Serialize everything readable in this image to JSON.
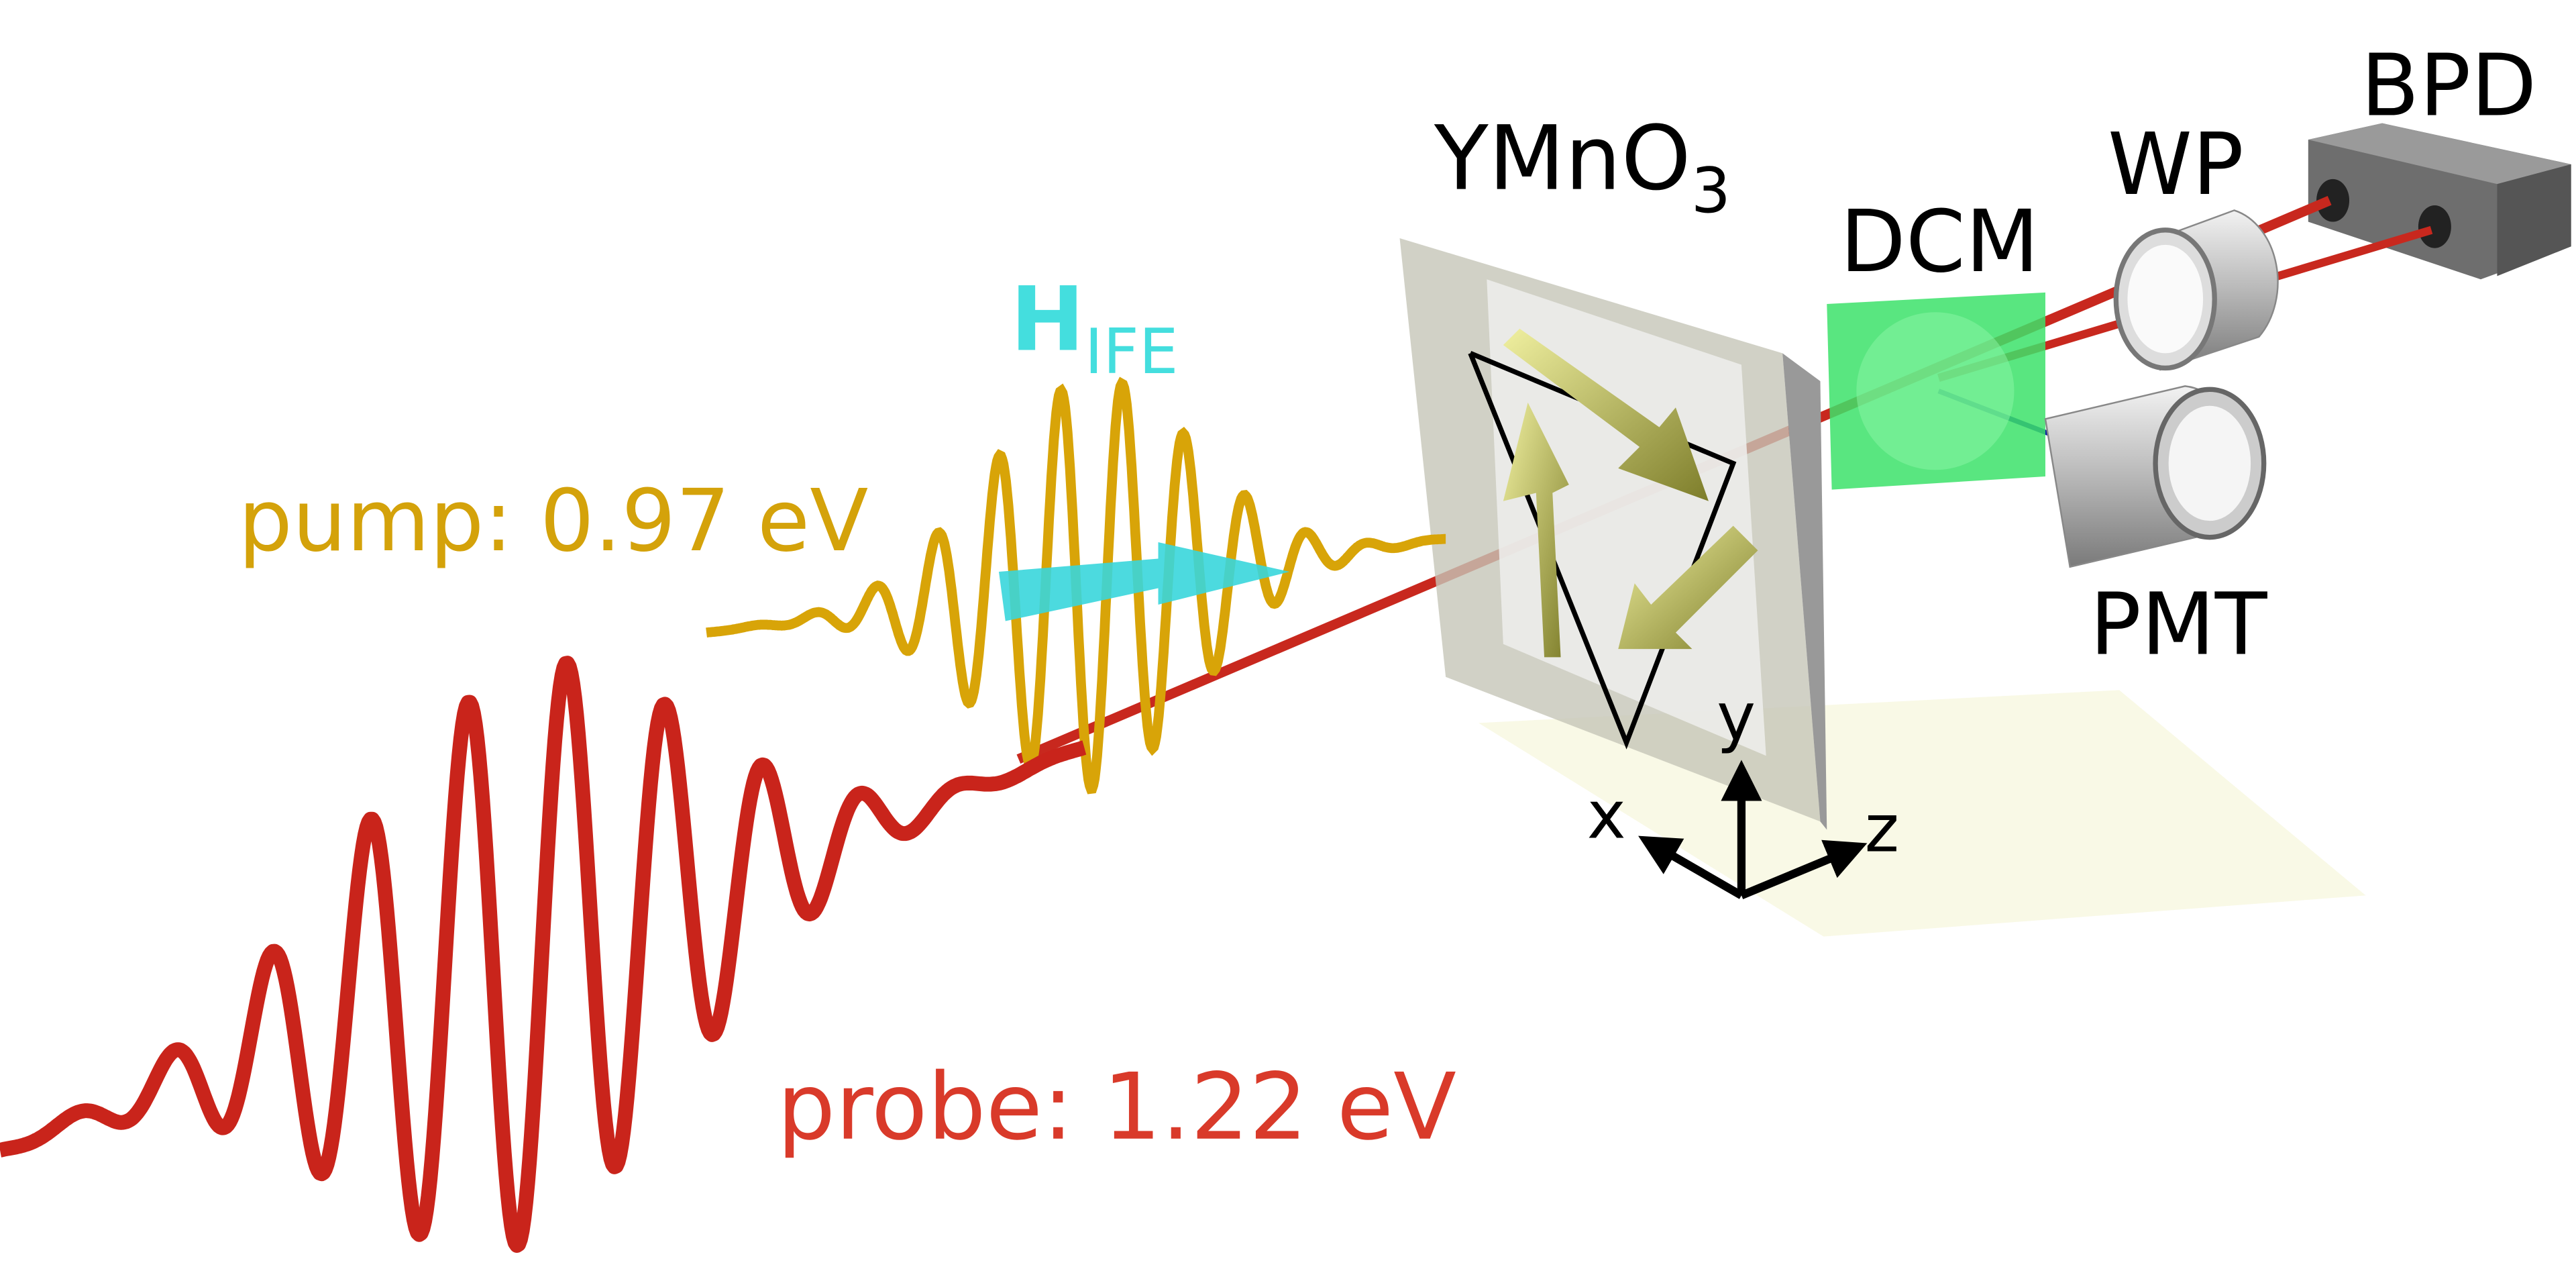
{
  "labels": {
    "bpd": "BPD",
    "wp": "WP",
    "sample": {
      "base": "YMnO",
      "sub": "3"
    },
    "dcm": "DCM",
    "field": {
      "base": "H",
      "sub": "IFE"
    },
    "pump": "pump: 0.97 eV",
    "pmt": "PMT",
    "probe": "probe: 1.22 eV",
    "axis_y": "y",
    "axis_x": "x",
    "axis_z": "z"
  }
}
